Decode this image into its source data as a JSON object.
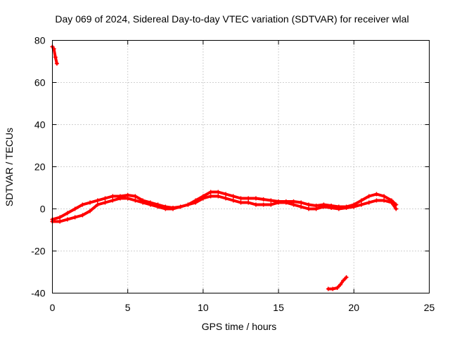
{
  "chart_data": {
    "type": "scatter",
    "title": "Day 069 of 2024, Sidereal Day-to-day VTEC variation (SDTVAR) for receiver wlal",
    "xlabel": "GPS time / hours",
    "ylabel": "SDTVAR / TECUs",
    "xlim": [
      0,
      25
    ],
    "ylim": [
      -40,
      80
    ],
    "xticks": [
      0,
      5,
      10,
      15,
      20,
      25
    ],
    "yticks": [
      -40,
      -20,
      0,
      20,
      40,
      60,
      80
    ],
    "grid": true,
    "color": "#ff0000",
    "series": [
      {
        "name": "segment-early",
        "x": [
          0.0,
          0.1,
          0.2,
          0.3
        ],
        "y": [
          77,
          76,
          72,
          69
        ]
      },
      {
        "name": "main-upper",
        "x": [
          0.0,
          0.5,
          1.0,
          1.5,
          2.0,
          2.5,
          3.0,
          3.5,
          4.0,
          4.5,
          5.0,
          5.5,
          6.0,
          6.5,
          7.0,
          7.5,
          8.0,
          8.5,
          9.0,
          9.5,
          10.0,
          10.5,
          11.0,
          11.5,
          12.0,
          12.5,
          13.0,
          13.5,
          14.0,
          14.5,
          15.0,
          15.5,
          16.0,
          16.5,
          17.0,
          17.5,
          18.0,
          18.5,
          19.0,
          19.5,
          20.0,
          20.5,
          21.0,
          21.5,
          22.0,
          22.5,
          22.8
        ],
        "y": [
          -5,
          -4,
          -2,
          0,
          2,
          3,
          4,
          5,
          6,
          6,
          6.5,
          6,
          4,
          3,
          2,
          1,
          0.5,
          1,
          2,
          4,
          6,
          8,
          8,
          7,
          6,
          5,
          5,
          5,
          4.5,
          4,
          3.5,
          3.5,
          3.5,
          3,
          2,
          1.5,
          2,
          1.5,
          1,
          1,
          2,
          4,
          6,
          7,
          6,
          4,
          2
        ]
      },
      {
        "name": "main-lower",
        "x": [
          0.0,
          0.5,
          1.0,
          1.5,
          2.0,
          2.5,
          3.0,
          3.5,
          4.0,
          4.5,
          5.0,
          5.5,
          6.0,
          6.5,
          7.0,
          7.5,
          8.0,
          8.5,
          9.0,
          9.5,
          10.0,
          10.5,
          11.0,
          11.5,
          12.0,
          12.5,
          13.0,
          13.5,
          14.0,
          14.5,
          15.0,
          15.5,
          16.0,
          16.5,
          17.0,
          17.5,
          18.0,
          18.5,
          19.0,
          19.5,
          20.0,
          20.5,
          21.0,
          21.5,
          22.0,
          22.5,
          22.8
        ],
        "y": [
          -6,
          -6,
          -5,
          -4,
          -3,
          -1,
          2,
          3,
          4,
          5,
          5,
          4,
          3,
          2,
          1,
          0,
          0,
          1,
          2,
          3,
          5,
          6,
          6,
          5,
          4,
          3,
          3,
          2,
          2,
          2,
          3,
          3,
          2,
          1,
          0,
          0,
          1,
          0.5,
          0,
          0.5,
          1,
          2,
          3,
          4,
          4,
          3,
          0
        ]
      },
      {
        "name": "segment-late",
        "x": [
          18.3,
          18.6,
          18.9,
          19.1,
          19.3,
          19.5
        ],
        "y": [
          -38,
          -38,
          -37.5,
          -36,
          -34,
          -32.5
        ]
      }
    ]
  }
}
